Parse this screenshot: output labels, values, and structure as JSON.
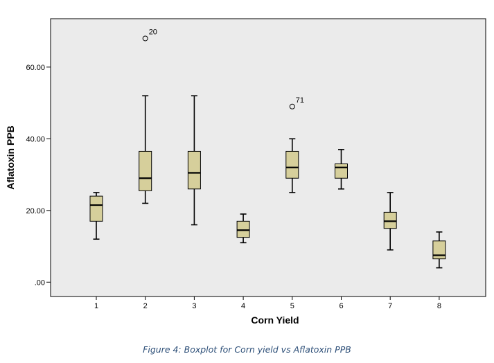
{
  "chart_data": {
    "type": "boxplot",
    "xlabel": "Corn Yield",
    "ylabel": "Aflatoxin PPB",
    "ylim": [
      -4,
      73.5
    ],
    "y_ticks": [
      {
        "value": 0,
        "label": ".00"
      },
      {
        "value": 20,
        "label": "20.00"
      },
      {
        "value": 40,
        "label": "40.00"
      },
      {
        "value": 60,
        "label": "60.00"
      }
    ],
    "colors": {
      "plot_background": "#ebebeb",
      "box_fill": "#d6cf9b",
      "stroke": "#000000"
    },
    "grid": false,
    "categories": [
      "1",
      "2",
      "3",
      "4",
      "5",
      "6",
      "7",
      "8"
    ],
    "boxes": [
      {
        "category": "1",
        "whisker_low": 12,
        "q1": 17,
        "median": 21.5,
        "q3": 24,
        "whisker_high": 25,
        "outliers": []
      },
      {
        "category": "2",
        "whisker_low": 22,
        "q1": 25.5,
        "median": 29,
        "q3": 36.5,
        "whisker_high": 52,
        "outliers": [
          {
            "value": 68,
            "label": "20"
          }
        ]
      },
      {
        "category": "3",
        "whisker_low": 16,
        "q1": 26,
        "median": 30.5,
        "q3": 36.5,
        "whisker_high": 52,
        "outliers": []
      },
      {
        "category": "4",
        "whisker_low": 11,
        "q1": 12.5,
        "median": 14.5,
        "q3": 17,
        "whisker_high": 19,
        "outliers": []
      },
      {
        "category": "5",
        "whisker_low": 25,
        "q1": 29,
        "median": 32,
        "q3": 36.5,
        "whisker_high": 40,
        "outliers": [
          {
            "value": 49,
            "label": "71"
          }
        ]
      },
      {
        "category": "6",
        "whisker_low": 26,
        "q1": 29,
        "median": 32,
        "q3": 33,
        "whisker_high": 37,
        "outliers": []
      },
      {
        "category": "7",
        "whisker_low": 9,
        "q1": 15,
        "median": 17,
        "q3": 19.5,
        "whisker_high": 25,
        "outliers": []
      },
      {
        "category": "8",
        "whisker_low": 4,
        "q1": 6.5,
        "median": 7.5,
        "q3": 11.5,
        "whisker_high": 14,
        "outliers": []
      }
    ]
  },
  "caption": "Figure 4: Boxplot for Corn yield vs Aflatoxin PPB"
}
